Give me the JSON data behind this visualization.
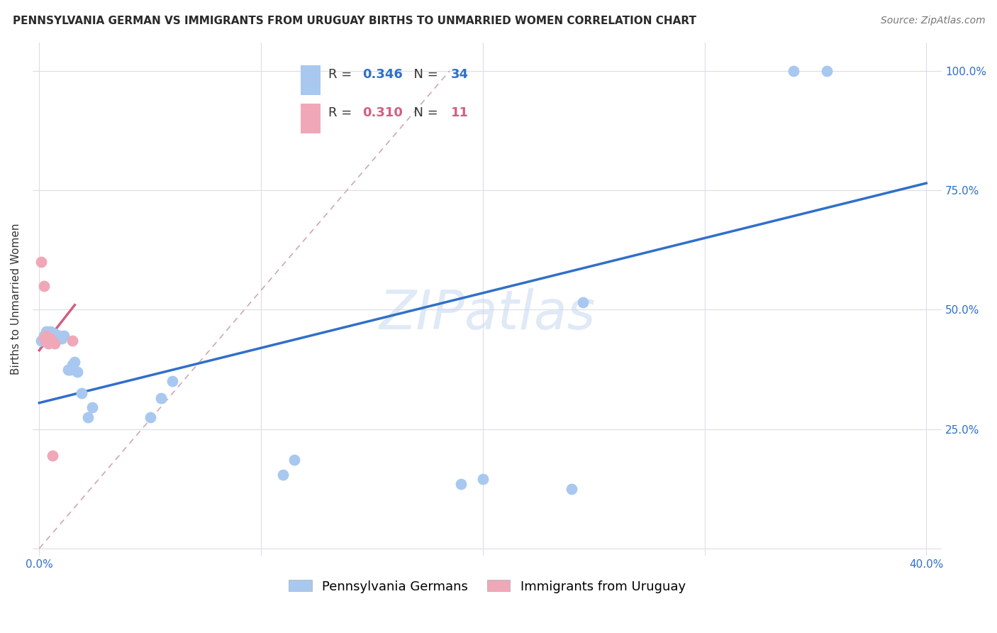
{
  "title": "PENNSYLVANIA GERMAN VS IMMIGRANTS FROM URUGUAY BIRTHS TO UNMARRIED WOMEN CORRELATION CHART",
  "source": "Source: ZipAtlas.com",
  "xlabel_blue": "Pennsylvania Germans",
  "xlabel_pink": "Immigrants from Uruguay",
  "ylabel": "Births to Unmarried Women",
  "blue_R": 0.346,
  "blue_N": 34,
  "pink_R": 0.31,
  "pink_N": 11,
  "blue_color": "#a8c8f0",
  "pink_color": "#f0a8b8",
  "blue_line_color": "#3070c8",
  "pink_line_color": "#d06080",
  "dashed_line_color": "#c8a0a8",
  "grid_color": "#dcdce8",
  "watermark": "ZIPatlas",
  "blue_scatter_x": [
    0.001,
    0.002,
    0.003,
    0.003,
    0.004,
    0.004,
    0.005,
    0.005,
    0.006,
    0.007,
    0.007,
    0.008,
    0.009,
    0.01,
    0.011,
    0.013,
    0.014,
    0.015,
    0.016,
    0.017,
    0.019,
    0.022,
    0.024,
    0.05,
    0.055,
    0.06,
    0.11,
    0.115,
    0.19,
    0.2,
    0.24,
    0.245,
    0.34,
    0.355
  ],
  "blue_scatter_y": [
    0.435,
    0.445,
    0.445,
    0.455,
    0.44,
    0.45,
    0.44,
    0.455,
    0.44,
    0.445,
    0.45,
    0.44,
    0.445,
    0.44,
    0.445,
    0.375,
    0.375,
    0.385,
    0.39,
    0.37,
    0.325,
    0.275,
    0.295,
    0.275,
    0.315,
    0.35,
    0.155,
    0.185,
    0.135,
    0.145,
    0.125,
    0.515,
    1.0,
    1.0
  ],
  "pink_scatter_x": [
    0.001,
    0.002,
    0.002,
    0.003,
    0.003,
    0.004,
    0.004,
    0.005,
    0.006,
    0.007,
    0.015
  ],
  "pink_scatter_y": [
    0.6,
    0.55,
    0.44,
    0.445,
    0.435,
    0.44,
    0.43,
    0.44,
    0.195,
    0.43,
    0.435
  ],
  "blue_line_x": [
    0.0,
    0.4
  ],
  "blue_line_y": [
    0.305,
    0.765
  ],
  "pink_line_x": [
    0.0,
    0.016
  ],
  "pink_line_y": [
    0.415,
    0.51
  ],
  "dashed_line_x": [
    0.0,
    0.185
  ],
  "dashed_line_y": [
    0.0,
    1.0
  ],
  "xlim": [
    -0.003,
    0.407
  ],
  "ylim": [
    -0.015,
    1.06
  ],
  "x_tick_positions": [
    0.0,
    0.1,
    0.2,
    0.3,
    0.4
  ],
  "x_tick_labels": [
    "0.0%",
    "",
    "",
    "",
    "40.0%"
  ],
  "y_tick_positions": [
    0.0,
    0.25,
    0.5,
    0.75,
    1.0
  ],
  "y_tick_labels_right": [
    "",
    "25.0%",
    "50.0%",
    "75.0%",
    "100.0%"
  ],
  "title_fontsize": 11,
  "source_fontsize": 10,
  "ylabel_fontsize": 11,
  "tick_fontsize": 11,
  "legend_fontsize": 13,
  "watermark_fontsize": 55
}
